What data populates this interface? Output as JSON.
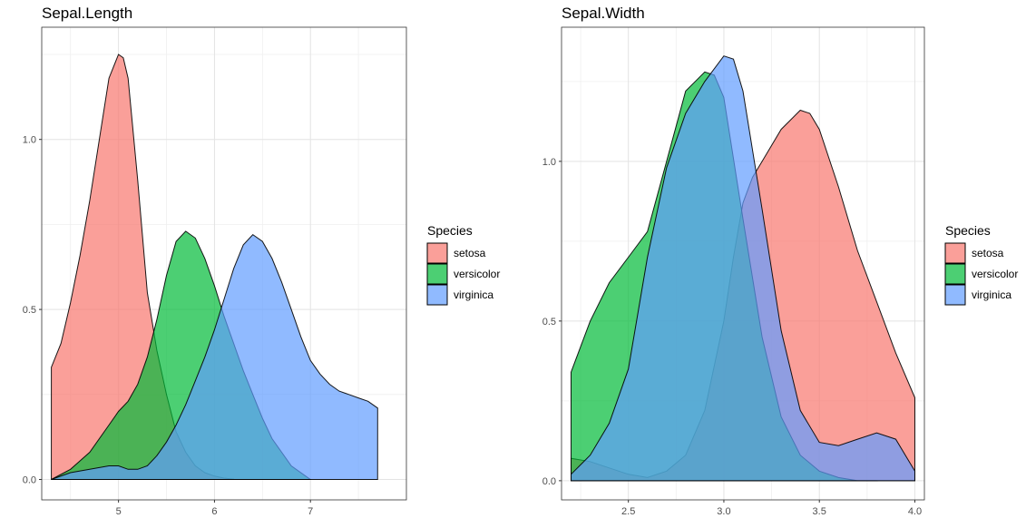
{
  "colors": {
    "setosa": "#F8766D",
    "versicolor": "#00BA38",
    "virginica": "#619CFF",
    "grid": "#e3e3e3",
    "frame": "#333333",
    "tick_text": "#4d4d4d"
  },
  "chart_data": [
    {
      "type": "area",
      "title": "Sepal.Length",
      "xlabel": "",
      "ylabel": "",
      "xlim": [
        4.2,
        8.0
      ],
      "ylim": [
        -0.06,
        1.33
      ],
      "xticks": [
        5,
        6,
        7
      ],
      "yticks": [
        0.0,
        0.5,
        1.0
      ],
      "tick_labels_x": [
        "5",
        "6",
        "7"
      ],
      "tick_labels_y": [
        "0.0",
        "0.5",
        "1.0"
      ],
      "grid": true,
      "legend": {
        "title": "Species",
        "placement": "right",
        "entries": [
          "setosa",
          "versicolor",
          "virginica"
        ]
      },
      "series": [
        {
          "name": "setosa",
          "x": [
            4.3,
            4.4,
            4.5,
            4.6,
            4.7,
            4.8,
            4.9,
            5.0,
            5.05,
            5.1,
            5.2,
            5.3,
            5.4,
            5.5,
            5.6,
            5.7,
            5.8,
            5.9,
            6.0,
            6.1,
            6.2
          ],
          "values": [
            0.33,
            0.4,
            0.52,
            0.66,
            0.82,
            1.0,
            1.18,
            1.25,
            1.24,
            1.18,
            0.88,
            0.55,
            0.38,
            0.25,
            0.14,
            0.08,
            0.04,
            0.02,
            0.01,
            0.004,
            0.001
          ]
        },
        {
          "name": "versicolor",
          "x": [
            4.3,
            4.5,
            4.7,
            4.9,
            5.0,
            5.1,
            5.2,
            5.3,
            5.4,
            5.5,
            5.6,
            5.7,
            5.8,
            5.9,
            6.0,
            6.1,
            6.2,
            6.3,
            6.4,
            6.5,
            6.6,
            6.8,
            7.0
          ],
          "values": [
            0.0,
            0.03,
            0.08,
            0.16,
            0.2,
            0.23,
            0.28,
            0.36,
            0.47,
            0.6,
            0.7,
            0.73,
            0.71,
            0.65,
            0.57,
            0.48,
            0.4,
            0.32,
            0.25,
            0.18,
            0.12,
            0.04,
            0.0
          ]
        },
        {
          "name": "virginica",
          "x": [
            4.3,
            4.5,
            4.7,
            4.9,
            5.0,
            5.1,
            5.2,
            5.3,
            5.4,
            5.5,
            5.6,
            5.7,
            5.8,
            5.9,
            6.0,
            6.1,
            6.2,
            6.3,
            6.4,
            6.5,
            6.6,
            6.7,
            6.8,
            6.9,
            7.0,
            7.1,
            7.2,
            7.3,
            7.4,
            7.5,
            7.6,
            7.7
          ],
          "values": [
            0.0,
            0.02,
            0.03,
            0.04,
            0.04,
            0.03,
            0.03,
            0.04,
            0.07,
            0.11,
            0.16,
            0.22,
            0.29,
            0.36,
            0.44,
            0.53,
            0.62,
            0.69,
            0.72,
            0.7,
            0.65,
            0.58,
            0.5,
            0.42,
            0.35,
            0.31,
            0.28,
            0.26,
            0.25,
            0.24,
            0.23,
            0.21
          ]
        }
      ]
    },
    {
      "type": "area",
      "title": "Sepal.Width",
      "xlabel": "",
      "ylabel": "",
      "xlim": [
        2.15,
        4.05
      ],
      "ylim": [
        -0.06,
        1.42
      ],
      "xticks": [
        2.5,
        3.0,
        3.5,
        4.0
      ],
      "yticks": [
        0.0,
        0.5,
        1.0
      ],
      "tick_labels_x": [
        "2.5",
        "3.0",
        "3.5",
        "4.0"
      ],
      "tick_labels_y": [
        "0.0",
        "0.5",
        "1.0"
      ],
      "grid": true,
      "legend": {
        "title": "Species",
        "placement": "right",
        "entries": [
          "setosa",
          "versicolor",
          "virginica"
        ]
      },
      "series": [
        {
          "name": "setosa",
          "x": [
            2.2,
            2.3,
            2.4,
            2.5,
            2.6,
            2.7,
            2.8,
            2.9,
            3.0,
            3.05,
            3.1,
            3.15,
            3.2,
            3.3,
            3.4,
            3.45,
            3.5,
            3.6,
            3.7,
            3.8,
            3.9,
            4.0
          ],
          "values": [
            0.07,
            0.06,
            0.04,
            0.02,
            0.01,
            0.03,
            0.08,
            0.22,
            0.5,
            0.7,
            0.87,
            0.95,
            1.0,
            1.1,
            1.16,
            1.15,
            1.1,
            0.92,
            0.72,
            0.56,
            0.4,
            0.26
          ]
        },
        {
          "name": "versicolor",
          "x": [
            2.2,
            2.3,
            2.4,
            2.5,
            2.6,
            2.7,
            2.8,
            2.9,
            2.95,
            3.0,
            3.1,
            3.2,
            3.3,
            3.4,
            3.5,
            3.6,
            3.7,
            3.8
          ],
          "values": [
            0.34,
            0.5,
            0.62,
            0.7,
            0.78,
            1.0,
            1.22,
            1.28,
            1.27,
            1.2,
            0.82,
            0.45,
            0.2,
            0.08,
            0.03,
            0.01,
            0.0,
            0.0
          ]
        },
        {
          "name": "virginica",
          "x": [
            2.2,
            2.3,
            2.4,
            2.5,
            2.6,
            2.7,
            2.8,
            2.9,
            3.0,
            3.05,
            3.1,
            3.2,
            3.3,
            3.4,
            3.5,
            3.6,
            3.7,
            3.8,
            3.9,
            4.0
          ],
          "values": [
            0.02,
            0.08,
            0.18,
            0.35,
            0.7,
            0.98,
            1.15,
            1.25,
            1.33,
            1.32,
            1.22,
            0.85,
            0.47,
            0.22,
            0.12,
            0.11,
            0.13,
            0.15,
            0.13,
            0.03
          ]
        }
      ]
    }
  ]
}
